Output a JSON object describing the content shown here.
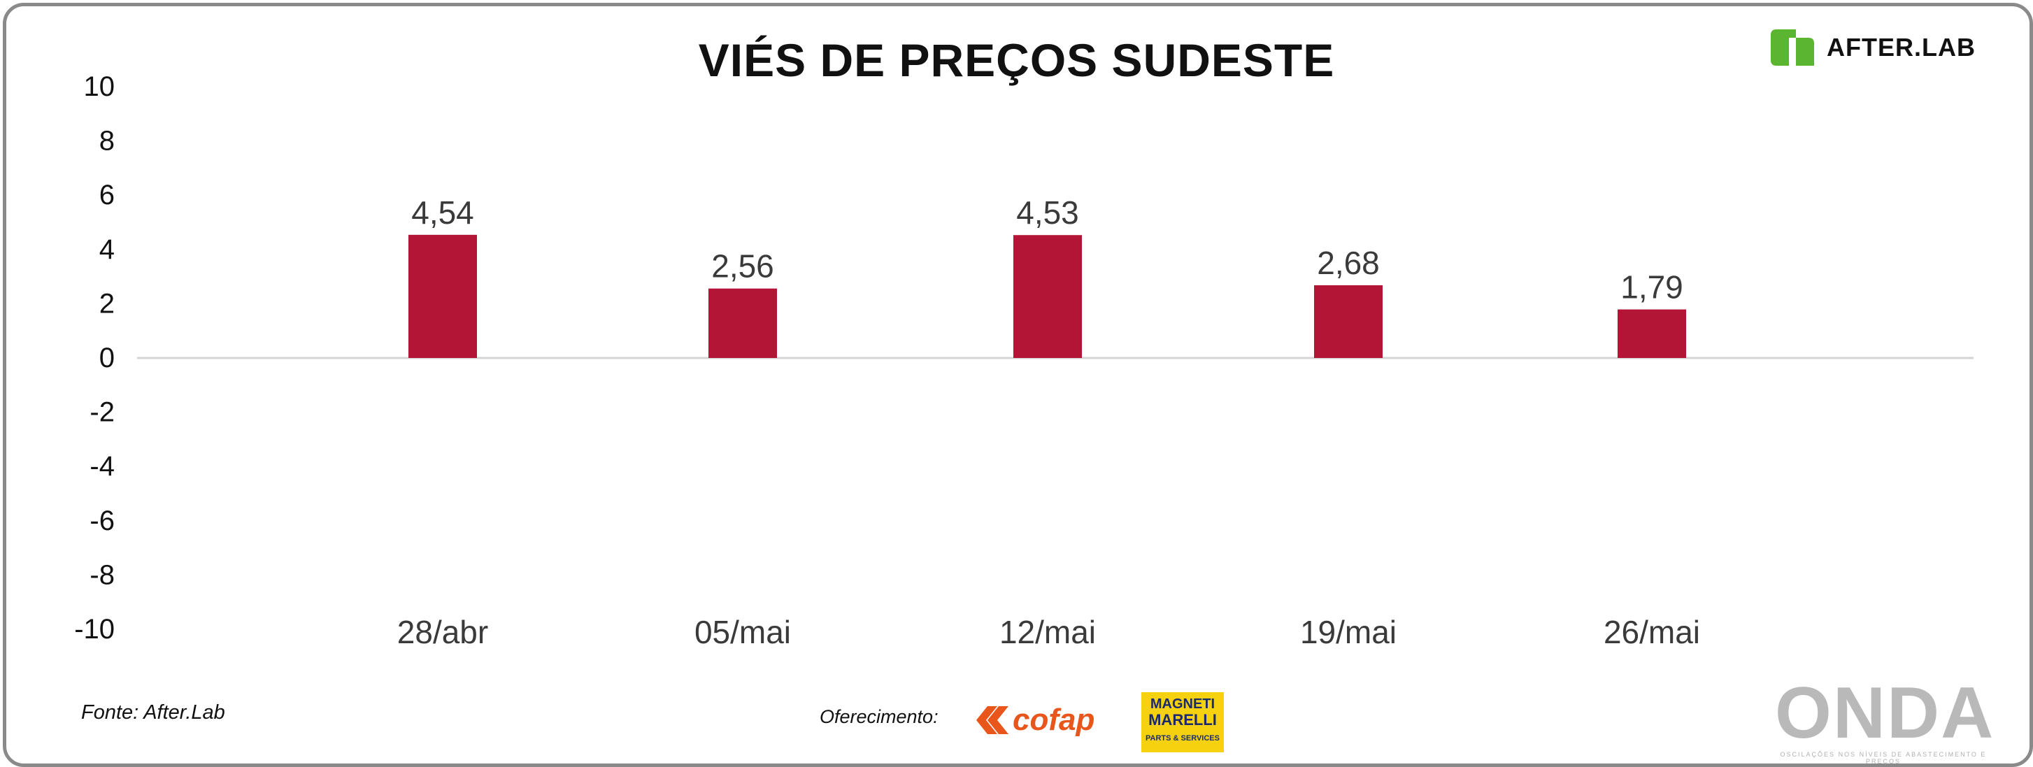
{
  "chart_data": {
    "type": "bar",
    "title": "VIÉS DE PREÇOS SUDESTE",
    "xlabel": "",
    "ylabel": "",
    "categories": [
      "28/abr",
      "05/mai",
      "12/mai",
      "19/mai",
      "26/mai"
    ],
    "values": [
      4.54,
      2.56,
      4.53,
      2.68,
      1.79
    ],
    "value_labels": [
      "4,54",
      "2,56",
      "4,53",
      "2,68",
      "1,79"
    ],
    "ylim": [
      -10,
      10
    ],
    "yticks": [
      10,
      8,
      6,
      4,
      2,
      0,
      -2,
      -4,
      -6,
      -8,
      -10
    ],
    "grid": false,
    "bar_color": "#b31536"
  },
  "brand": {
    "afterlab_name": "AFTER.LAB",
    "afterlab_color": "#5cb530",
    "cofap_name": "cofap",
    "cofap_color": "#e8561c",
    "magneti_line1": "MAGNETI",
    "magneti_line2": "MARELLI",
    "magneti_line3": "PARTS & SERVICES",
    "magneti_color": "#f6d10f",
    "onda_name": "ONDA",
    "onda_tagline": "OSCILAÇÕES NOS NÍVEIS DE ABASTECIMENTO E PREÇOS"
  },
  "footer": {
    "source": "Fonte: After.Lab",
    "sponsor_label": "Oferecimento:"
  }
}
